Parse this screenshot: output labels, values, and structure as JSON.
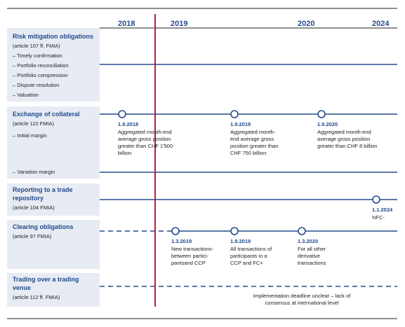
{
  "years": [
    "2018",
    "2019",
    "2020",
    "2024"
  ],
  "bands": {
    "risk": {
      "title": "Risk mitigation obligations",
      "sub": "(article 107 ff. FMIA)",
      "items": [
        "– Timely confirmation",
        "– Portfolio reconciliation",
        "– Portfolio compression",
        "– Dispute resolution",
        "– Valuation"
      ]
    },
    "collateral": {
      "title": "Exchange of collateral",
      "sub": "(article 110 FMIA)",
      "initial": "– Initial margin",
      "variation": "– Variation margin"
    },
    "reporting": {
      "title_1": "Reporting to a trade",
      "title_2": "repository",
      "sub": "(article 104 FMIA)"
    },
    "clearing": {
      "title": "Clearing obligations",
      "sub": "(article 97 FMIA)"
    },
    "trading": {
      "title_1": "Trading over a trading",
      "title_2": "venue",
      "sub": "(article 112 ff. FMIA)"
    }
  },
  "milestones": {
    "c1": {
      "date": "1.9.2018",
      "lines": [
        "Aggregated month-end",
        "average gross position",
        "greater than CHF 1'500",
        "billion"
      ]
    },
    "c2": {
      "date": "1.9.2019",
      "lines": [
        "Aggregated month-",
        "end average gross",
        "position greater than",
        "CHF 750 billion"
      ]
    },
    "c3": {
      "date": "1.9.2020",
      "lines": [
        "Aggregated month-end",
        "average gross position",
        "greater than CHF 8 billion"
      ]
    },
    "r1": {
      "date": "1.1.2024",
      "lines": [
        "NFC-"
      ]
    },
    "k1": {
      "date": "1.3.2019",
      "lines": [
        "New transactions-",
        "between partici-",
        "pantsand CCP"
      ]
    },
    "k2": {
      "date": "1.9.2019",
      "lines": [
        "All transactions of",
        "participants in a",
        "CCP and FC+"
      ]
    },
    "k3": {
      "date": "1.3.2020",
      "lines": [
        "For all other",
        "derivative",
        "transactions"
      ]
    }
  },
  "trading_note": [
    "Implementation deadline unclear – lack of",
    "consensus at international level"
  ],
  "colors": {
    "navy": "#234b8c",
    "band": "#e7ebf3",
    "marker": "#b3213b"
  }
}
